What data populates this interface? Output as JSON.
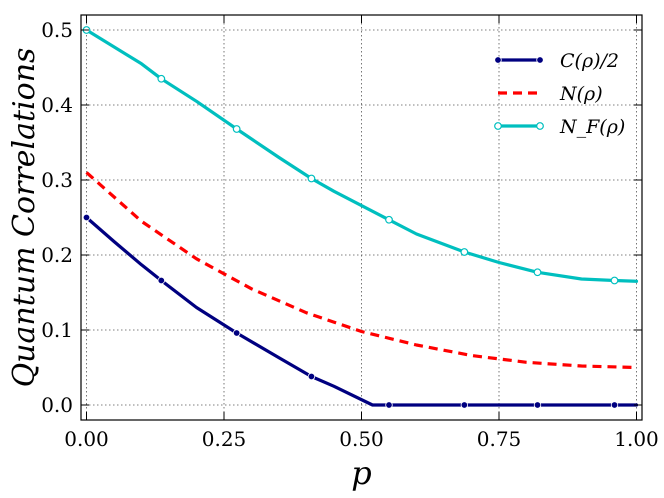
{
  "chart_data": {
    "type": "line",
    "xlabel": "p",
    "ylabel": "Quantum Correlations",
    "xlim": [
      -0.01,
      1.01
    ],
    "ylim": [
      -0.02,
      0.52
    ],
    "x_ticks": [
      "0.00",
      "0.25",
      "0.50",
      "0.75",
      "1.00"
    ],
    "y_ticks": [
      "0.0",
      "0.1",
      "0.2",
      "0.3",
      "0.4",
      "0.5"
    ],
    "grid": true,
    "legend_position": "top-right",
    "series": [
      {
        "name": "C(ρ)/2",
        "color": "#000080",
        "style": "solid",
        "marker": "filled-circle",
        "x": [
          0.0,
          0.05,
          0.1,
          0.136,
          0.2,
          0.273,
          0.35,
          0.409,
          0.45,
          0.52,
          0.55,
          0.687,
          0.82,
          0.96,
          1.0
        ],
        "y": [
          0.25,
          0.218,
          0.187,
          0.166,
          0.13,
          0.096,
          0.063,
          0.038,
          0.025,
          0.0,
          0.0,
          0.0,
          0.0,
          0.0,
          0.0
        ],
        "marker_x": [
          0.0,
          0.136,
          0.273,
          0.409,
          0.55,
          0.687,
          0.82,
          0.96
        ],
        "marker_y": [
          0.25,
          0.166,
          0.096,
          0.038,
          0.0,
          0.0,
          0.0,
          0.0
        ]
      },
      {
        "name": "N(ρ)",
        "color": "#ff0000",
        "style": "dashed",
        "marker": "none",
        "x": [
          0.0,
          0.1,
          0.2,
          0.3,
          0.4,
          0.5,
          0.6,
          0.7,
          0.8,
          0.9,
          1.0
        ],
        "y": [
          0.31,
          0.245,
          0.195,
          0.155,
          0.123,
          0.098,
          0.08,
          0.066,
          0.057,
          0.052,
          0.05
        ]
      },
      {
        "name": "N_F(ρ)",
        "color": "#00bfbf",
        "style": "solid",
        "marker": "open-circle",
        "x": [
          0.0,
          0.1,
          0.136,
          0.2,
          0.273,
          0.35,
          0.409,
          0.45,
          0.55,
          0.6,
          0.687,
          0.75,
          0.82,
          0.9,
          0.96,
          1.0
        ],
        "y": [
          0.5,
          0.455,
          0.435,
          0.405,
          0.368,
          0.33,
          0.302,
          0.285,
          0.247,
          0.228,
          0.204,
          0.19,
          0.177,
          0.168,
          0.166,
          0.165
        ],
        "marker_x": [
          0.0,
          0.136,
          0.273,
          0.409,
          0.55,
          0.687,
          0.82,
          0.96
        ],
        "marker_y": [
          0.5,
          0.435,
          0.368,
          0.302,
          0.247,
          0.204,
          0.177,
          0.166
        ]
      }
    ]
  }
}
